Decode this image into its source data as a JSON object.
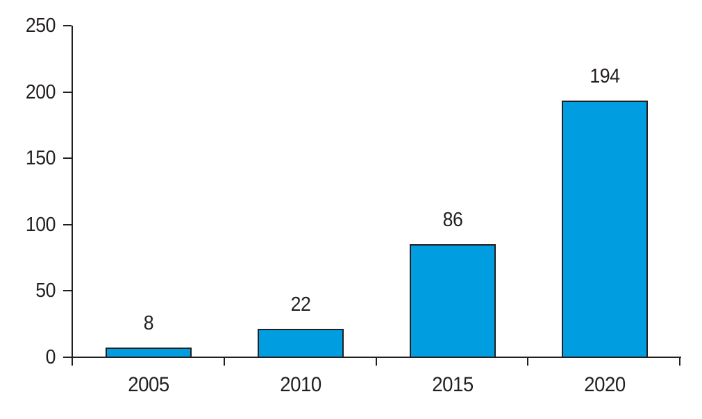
{
  "chart_data": {
    "type": "bar",
    "categories": [
      "2005",
      "2010",
      "2015",
      "2020"
    ],
    "values": [
      8,
      22,
      86,
      194
    ],
    "value_labels": [
      "8",
      "22",
      "86",
      "194"
    ],
    "title": "",
    "xlabel": "",
    "ylabel": "",
    "ylim": [
      0,
      250
    ],
    "yticks": [
      0,
      50,
      100,
      150,
      200,
      250
    ],
    "ytick_labels": [
      "0",
      "50",
      "100",
      "150",
      "200",
      "250"
    ],
    "grid": false,
    "legend": "none",
    "bar_color": "#009EE0",
    "bar_border_color": "#231F20",
    "axis_color": "#231F20",
    "text_color": "#231F20"
  }
}
